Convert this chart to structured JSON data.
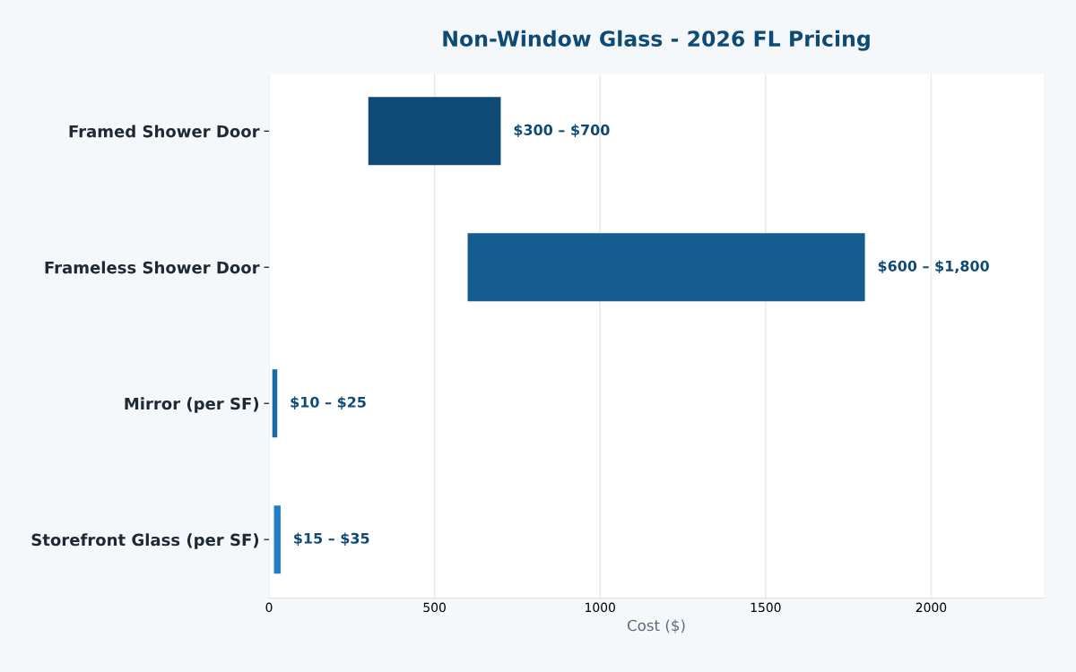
{
  "chart_data": {
    "type": "bar",
    "orientation": "horizontal",
    "title": "Non-Window Glass - 2026 FL Pricing",
    "xlabel": "Cost ($)",
    "categories": [
      "Framed Shower Door",
      "Frameless Shower Door",
      "Mirror (per SF)",
      "Storefront Glass (per SF)"
    ],
    "base": [
      300,
      600,
      10,
      15
    ],
    "values": [
      400,
      1200,
      15,
      20
    ],
    "colors": [
      "#0e4a75",
      "#155d8f",
      "#1a6aa8",
      "#1e7fc4"
    ],
    "annotations": [
      {
        "text": "$300 – $700",
        "x": 700,
        "y": "Framed Shower Door"
      },
      {
        "text": "$600 – $1,800",
        "x": 1800,
        "y": "Frameless Shower Door"
      },
      {
        "text": "$10 – $25",
        "x": 25,
        "y": "Mirror (per SF)"
      },
      {
        "text": "$15 – $35",
        "x": 35,
        "y": "Storefront Glass (per SF)"
      }
    ],
    "xlim": [
      0,
      2340
    ],
    "xticks": [
      0,
      500,
      1000,
      1500,
      2000
    ],
    "grid": "x"
  }
}
